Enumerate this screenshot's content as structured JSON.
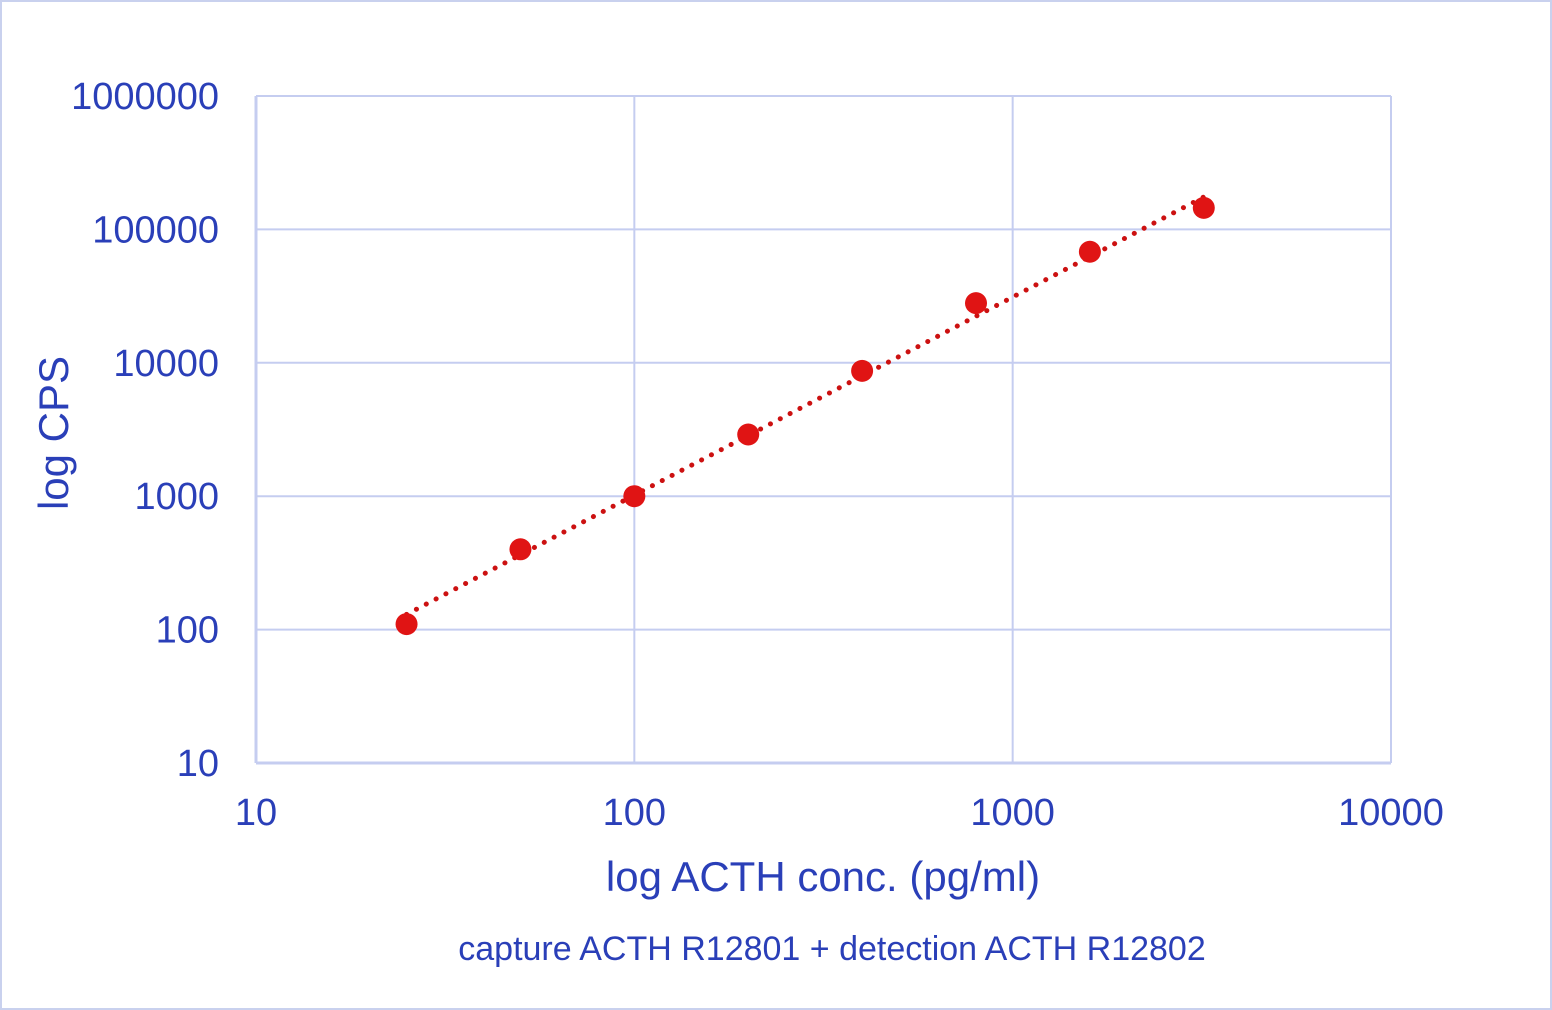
{
  "chart_data": {
    "type": "scatter",
    "title": "",
    "caption": "capture ACTH R12801 + detection ACTH R12802",
    "xlabel": "log ACTH conc. (pg/ml)",
    "ylabel": "log CPS",
    "x_scale": "log",
    "y_scale": "log",
    "xlim": [
      10,
      10000
    ],
    "ylim": [
      10,
      1000000
    ],
    "x_ticks": [
      "10",
      "100",
      "1000",
      "10000"
    ],
    "y_ticks": [
      "10",
      "100",
      "1000",
      "10000",
      "100000",
      "1000000"
    ],
    "grid": true,
    "legend": "none",
    "series": [
      {
        "x": [
          25,
          50,
          100,
          200,
          400,
          800,
          1600,
          3200
        ],
        "y": [
          110,
          400,
          1000,
          2900,
          8700,
          28000,
          68000,
          145000
        ],
        "marker_color": "#e01414"
      }
    ],
    "trendline": {
      "style": "dotted",
      "color": "#cc1111",
      "x": [
        25,
        3200
      ],
      "y": [
        130,
        175000
      ]
    },
    "colors": {
      "text": "#2a3fb8",
      "grid": "#c5cdf0",
      "frame": "#c9d1ee"
    }
  }
}
